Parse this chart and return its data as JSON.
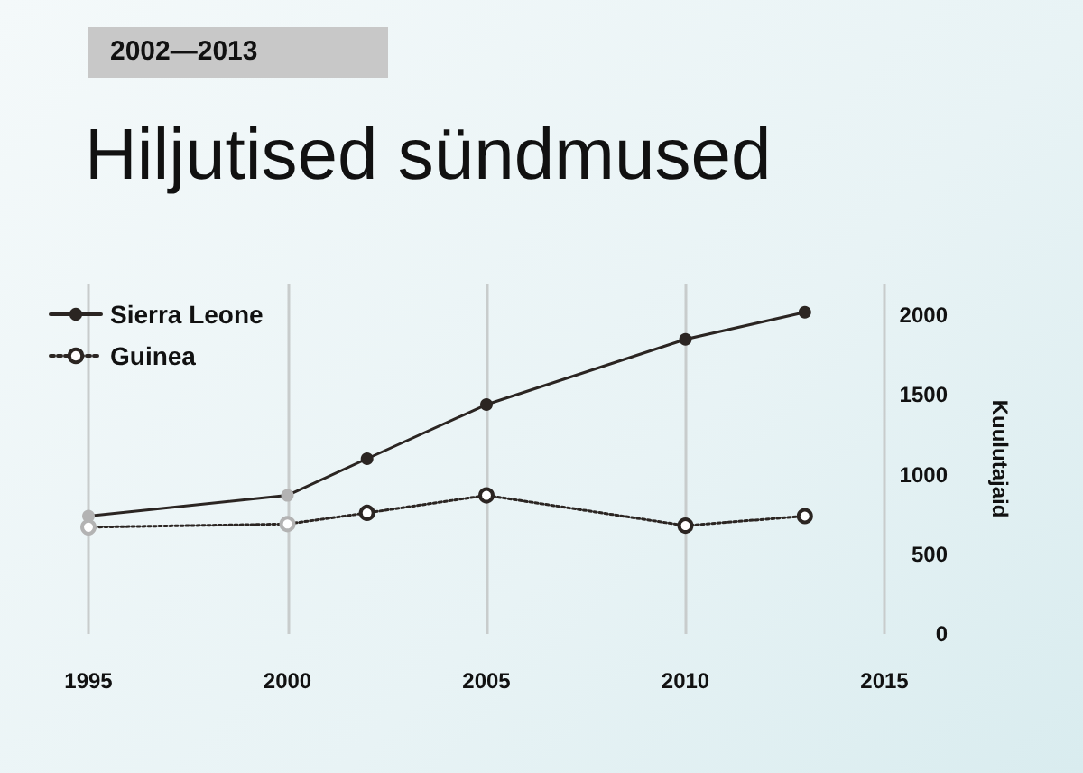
{
  "chart_data": {
    "type": "line",
    "title": "Hiljutised sündmused",
    "subtitle": "2002—2013",
    "ylabel": "Kuulutajaid",
    "x": [
      1995,
      2000,
      2002,
      2005,
      2010,
      2013
    ],
    "series": [
      {
        "name": "Sierra Leone",
        "color": "#2b2522",
        "colors": [
          "#b3b3b3",
          "#b3b3b3",
          "#2b2522",
          "#2b2522",
          "#2b2522",
          "#2b2522"
        ],
        "values": [
          740,
          870,
          1100,
          1440,
          1850,
          2020
        ],
        "line_style": "solid"
      },
      {
        "name": "Guinea",
        "color": "#2b2522",
        "colors": [
          "#b3b3b3",
          "#b3b3b3",
          "#2b2522",
          "#2b2522",
          "#2b2522",
          "#2b2522"
        ],
        "values": [
          670,
          690,
          760,
          870,
          680,
          740
        ],
        "line_style": "dotted"
      }
    ],
    "xlim": [
      1995,
      2015
    ],
    "xticks": [
      1995,
      2000,
      2005,
      2010,
      2015
    ],
    "ylim": [
      0,
      2200
    ],
    "yticks": [
      0,
      500,
      1000,
      1500,
      2000
    ],
    "grid": "x",
    "legend": "top left",
    "marker": "circle"
  }
}
